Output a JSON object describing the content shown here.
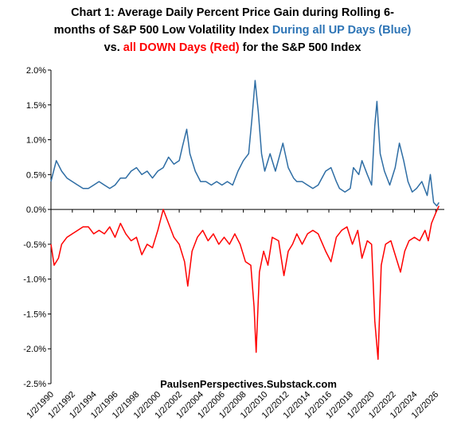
{
  "chart_data": {
    "type": "line",
    "title_lines": [
      [
        {
          "text": "Chart 1: Average Daily Percent Price Gain during Rolling 6-",
          "color": "#000000"
        }
      ],
      [
        {
          "text": "months of S&P 500 Low Volatility Index ",
          "color": "#000000"
        },
        {
          "text": "During all UP Days (Blue)",
          "color": "#2e75b6"
        }
      ],
      [
        {
          "text": "vs. ",
          "color": "#000000"
        },
        {
          "text": "all DOWN Days (Red)",
          "color": "#ff0000"
        },
        {
          "text": " for the S&P 500 Index",
          "color": "#000000"
        }
      ]
    ],
    "annotation": "PaulsenPerspectives.Substack.com",
    "xlim": [
      1990,
      2026.8
    ],
    "xticks": [
      {
        "value": 1990,
        "label": "1/2/1990"
      },
      {
        "value": 1992,
        "label": "1/2/1992"
      },
      {
        "value": 1994,
        "label": "1/2/1994"
      },
      {
        "value": 1996,
        "label": "1/2/1996"
      },
      {
        "value": 1998,
        "label": "1/2/1998"
      },
      {
        "value": 2000,
        "label": "1/2/2000"
      },
      {
        "value": 2002,
        "label": "1/2/2002"
      },
      {
        "value": 2004,
        "label": "1/2/2004"
      },
      {
        "value": 2006,
        "label": "1/2/2006"
      },
      {
        "value": 2008,
        "label": "1/2/2008"
      },
      {
        "value": 2010,
        "label": "1/2/2010"
      },
      {
        "value": 2012,
        "label": "1/2/2012"
      },
      {
        "value": 2014,
        "label": "1/2/2014"
      },
      {
        "value": 2016,
        "label": "1/2/2016"
      },
      {
        "value": 2018,
        "label": "1/2/2018"
      },
      {
        "value": 2020,
        "label": "1/2/2020"
      },
      {
        "value": 2022,
        "label": "1/2/2022"
      },
      {
        "value": 2024,
        "label": "1/2/2024"
      },
      {
        "value": 2026,
        "label": "1/2/2026"
      }
    ],
    "ylim": [
      -2.5,
      2.0
    ],
    "yticks": [
      {
        "value": 2.0,
        "label": "2.0%"
      },
      {
        "value": 1.5,
        "label": "1.5%"
      },
      {
        "value": 1.0,
        "label": "1.0%"
      },
      {
        "value": 0.5,
        "label": "0.5%"
      },
      {
        "value": 0,
        "label": "0.0%"
      },
      {
        "value": -0.5,
        "label": "-0.5%"
      },
      {
        "value": -1.0,
        "label": "-1.0%"
      },
      {
        "value": -1.5,
        "label": "-1.5%"
      },
      {
        "value": -2.0,
        "label": "-2.0%"
      },
      {
        "value": -2.5,
        "label": "-2.5%"
      }
    ],
    "grid": false,
    "series": [
      {
        "color": "#2e6da4",
        "x": [
          1990,
          1990.5,
          1991,
          1991.5,
          1992,
          1992.5,
          1993,
          1993.5,
          1994,
          1994.5,
          1995,
          1995.5,
          1996,
          1996.5,
          1997,
          1997.5,
          1998,
          1998.5,
          1999,
          1999.5,
          2000,
          2000.5,
          2001,
          2001.5,
          2002,
          2002.3,
          2002.7,
          2003,
          2003.5,
          2004,
          2004.5,
          2005,
          2005.5,
          2006,
          2006.5,
          2007,
          2007.5,
          2008,
          2008.5,
          2008.8,
          2009.1,
          2009.4,
          2009.7,
          2010,
          2010.5,
          2011,
          2011.7,
          2012.2,
          2012.7,
          2013,
          2013.5,
          2014,
          2014.5,
          2015,
          2015.7,
          2016.2,
          2016.7,
          2017,
          2017.5,
          2018,
          2018.3,
          2018.8,
          2019.1,
          2019.6,
          2020,
          2020.3,
          2020.5,
          2020.8,
          2021.2,
          2021.7,
          2022.2,
          2022.6,
          2023,
          2023.4,
          2023.8,
          2024.2,
          2024.7,
          2025.2,
          2025.5,
          2025.8,
          2026.1,
          2026.3
        ],
        "values": [
          0.4,
          0.7,
          0.55,
          0.45,
          0.4,
          0.35,
          0.3,
          0.3,
          0.35,
          0.4,
          0.35,
          0.3,
          0.35,
          0.45,
          0.45,
          0.55,
          0.6,
          0.5,
          0.55,
          0.45,
          0.55,
          0.6,
          0.75,
          0.65,
          0.7,
          0.9,
          1.15,
          0.8,
          0.55,
          0.4,
          0.4,
          0.35,
          0.4,
          0.35,
          0.4,
          0.35,
          0.55,
          0.7,
          0.8,
          1.3,
          1.85,
          1.4,
          0.8,
          0.55,
          0.8,
          0.55,
          0.95,
          0.6,
          0.45,
          0.4,
          0.4,
          0.35,
          0.3,
          0.35,
          0.55,
          0.6,
          0.4,
          0.3,
          0.25,
          0.3,
          0.6,
          0.5,
          0.7,
          0.5,
          0.35,
          1.2,
          1.55,
          0.8,
          0.55,
          0.35,
          0.6,
          0.95,
          0.7,
          0.4,
          0.25,
          0.3,
          0.4,
          0.2,
          0.5,
          0.1,
          0.05,
          0.1
        ]
      },
      {
        "color": "#ff0000",
        "x": [
          1990,
          1990.3,
          1990.7,
          1991,
          1991.5,
          1992,
          1992.5,
          1993,
          1993.5,
          1994,
          1994.5,
          1995,
          1995.5,
          1996,
          1996.5,
          1997,
          1997.5,
          1998,
          1998.5,
          1999,
          1999.5,
          2000,
          2000.5,
          2001,
          2001.5,
          2002,
          2002.5,
          2002.8,
          2003.2,
          2003.7,
          2004.2,
          2004.7,
          2005.2,
          2005.7,
          2006.2,
          2006.7,
          2007.2,
          2007.7,
          2008.2,
          2008.7,
          2009,
          2009.2,
          2009.5,
          2009.9,
          2010.3,
          2010.7,
          2011.3,
          2011.8,
          2012.2,
          2012.6,
          2013,
          2013.5,
          2014,
          2014.5,
          2015,
          2015.7,
          2016.2,
          2016.7,
          2017.2,
          2017.7,
          2018.2,
          2018.7,
          2019.1,
          2019.6,
          2020,
          2020.3,
          2020.6,
          2020.9,
          2021.3,
          2021.8,
          2022.3,
          2022.7,
          2023.1,
          2023.5,
          2024,
          2024.5,
          2025,
          2025.3,
          2025.6,
          2026,
          2026.3
        ],
        "values": [
          -0.5,
          -0.8,
          -0.7,
          -0.5,
          -0.4,
          -0.35,
          -0.3,
          -0.25,
          -0.25,
          -0.35,
          -0.3,
          -0.35,
          -0.25,
          -0.4,
          -0.2,
          -0.35,
          -0.45,
          -0.4,
          -0.65,
          -0.5,
          -0.55,
          -0.3,
          0.0,
          -0.2,
          -0.4,
          -0.5,
          -0.75,
          -1.1,
          -0.6,
          -0.4,
          -0.3,
          -0.45,
          -0.35,
          -0.5,
          -0.4,
          -0.5,
          -0.35,
          -0.5,
          -0.75,
          -0.8,
          -1.4,
          -2.05,
          -0.9,
          -0.6,
          -0.8,
          -0.4,
          -0.45,
          -0.95,
          -0.6,
          -0.5,
          -0.35,
          -0.5,
          -0.35,
          -0.3,
          -0.35,
          -0.6,
          -0.75,
          -0.4,
          -0.3,
          -0.25,
          -0.5,
          -0.3,
          -0.7,
          -0.45,
          -0.5,
          -1.6,
          -2.15,
          -0.8,
          -0.5,
          -0.45,
          -0.7,
          -0.9,
          -0.6,
          -0.45,
          -0.4,
          -0.45,
          -0.3,
          -0.45,
          -0.2,
          -0.05,
          0.05
        ]
      }
    ]
  }
}
